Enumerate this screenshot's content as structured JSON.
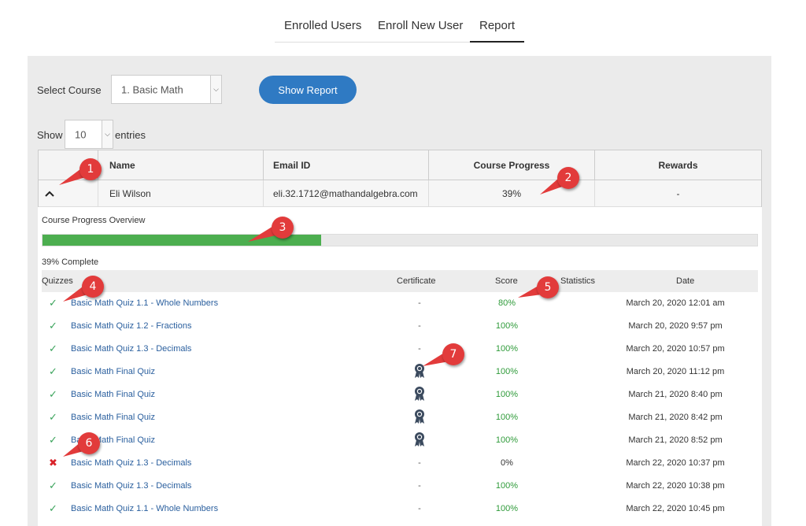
{
  "tabs": [
    {
      "label": "Enrolled Users",
      "active": false
    },
    {
      "label": "Enroll New User",
      "active": false
    },
    {
      "label": "Report",
      "active": true
    }
  ],
  "filters": {
    "select_course_label": "Select Course",
    "course_value": "1. Basic Math",
    "show_report_button": "Show Report",
    "show_label": "Show",
    "entries_value": "10",
    "entries_label": "entries"
  },
  "table": {
    "headers": [
      "",
      "Name",
      "Email ID",
      "Course Progress",
      "Rewards"
    ],
    "row": {
      "name": "Eli Wilson",
      "email": "eli.32.1712@mathandalgebra.com",
      "progress": "39%",
      "rewards": "-"
    }
  },
  "progress_overview": {
    "title": "Course Progress Overview",
    "percent": 39,
    "complete_text": "39% Complete"
  },
  "quiz_headers": {
    "quizzes": "Quizzes",
    "certificate": "Certificate",
    "score": "Score",
    "statistics": "Statistics",
    "date": "Date"
  },
  "quizzes": [
    {
      "status": "pass",
      "name": "Basic Math Quiz 1.1 - Whole Numbers",
      "certificate": "-",
      "score": "80%",
      "date": "March 20, 2020 12:01 am"
    },
    {
      "status": "pass",
      "name": "Basic Math Quiz 1.2 - Fractions",
      "certificate": "-",
      "score": "100%",
      "date": "March 20, 2020 9:57 pm"
    },
    {
      "status": "pass",
      "name": "Basic Math Quiz 1.3 - Decimals",
      "certificate": "-",
      "score": "100%",
      "date": "March 20, 2020 10:57 pm"
    },
    {
      "status": "pass",
      "name": "Basic Math Final Quiz",
      "certificate": "award-icon",
      "score": "100%",
      "date": "March 20, 2020 11:12 pm"
    },
    {
      "status": "pass",
      "name": "Basic Math Final Quiz",
      "certificate": "award-icon",
      "score": "100%",
      "date": "March 21, 2020 8:40 pm"
    },
    {
      "status": "pass",
      "name": "Basic Math Final Quiz",
      "certificate": "award-icon",
      "score": "100%",
      "date": "March 21, 2020 8:42 pm"
    },
    {
      "status": "pass",
      "name": "Basic Math Final Quiz",
      "certificate": "award-icon",
      "score": "100%",
      "date": "March 21, 2020 8:52 pm"
    },
    {
      "status": "fail",
      "name": "Basic Math Quiz 1.3 - Decimals",
      "certificate": "-",
      "score": "0%",
      "date": "March 22, 2020 10:37 pm"
    },
    {
      "status": "pass",
      "name": "Basic Math Quiz 1.3 - Decimals",
      "certificate": "-",
      "score": "100%",
      "date": "March 22, 2020 10:38 pm"
    },
    {
      "status": "pass",
      "name": "Basic Math Quiz 1.1 - Whole Numbers",
      "certificate": "-",
      "score": "100%",
      "date": "March 22, 2020 10:45 pm"
    }
  ],
  "markers": [
    "1",
    "2",
    "3",
    "4",
    "5",
    "6",
    "7"
  ],
  "colors": {
    "accent": "#2f7ac3",
    "progress": "#4cae4f",
    "marker": "#e23b3b",
    "pass": "#3aa35b",
    "fail": "#d9232a"
  }
}
